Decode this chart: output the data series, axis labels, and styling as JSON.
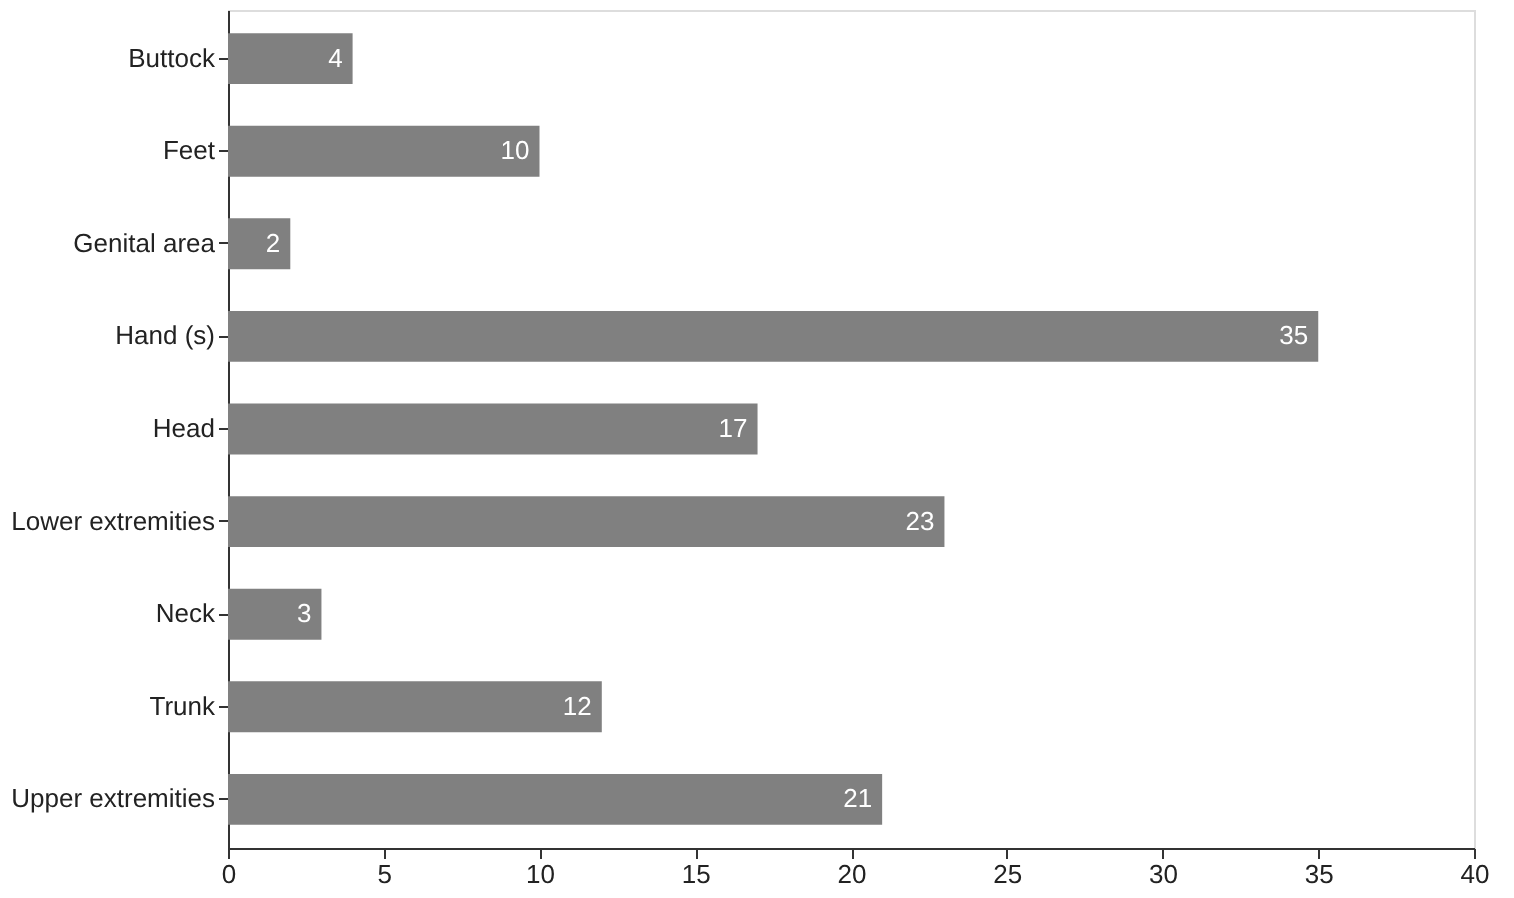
{
  "chart_data": {
    "type": "bar",
    "orientation": "horizontal",
    "categories": [
      "Buttock",
      "Feet",
      "Genital area",
      "Hand (s)",
      "Head",
      "Lower extremities",
      "Neck",
      "Trunk",
      "Upper extremities"
    ],
    "values": [
      4,
      10,
      2,
      35,
      17,
      23,
      3,
      12,
      21
    ],
    "color": "#808080",
    "xlim": [
      0,
      40
    ],
    "xticks": [
      0,
      5,
      10,
      15,
      20,
      25,
      30,
      35,
      40
    ],
    "grid": false,
    "data_labels": true
  }
}
